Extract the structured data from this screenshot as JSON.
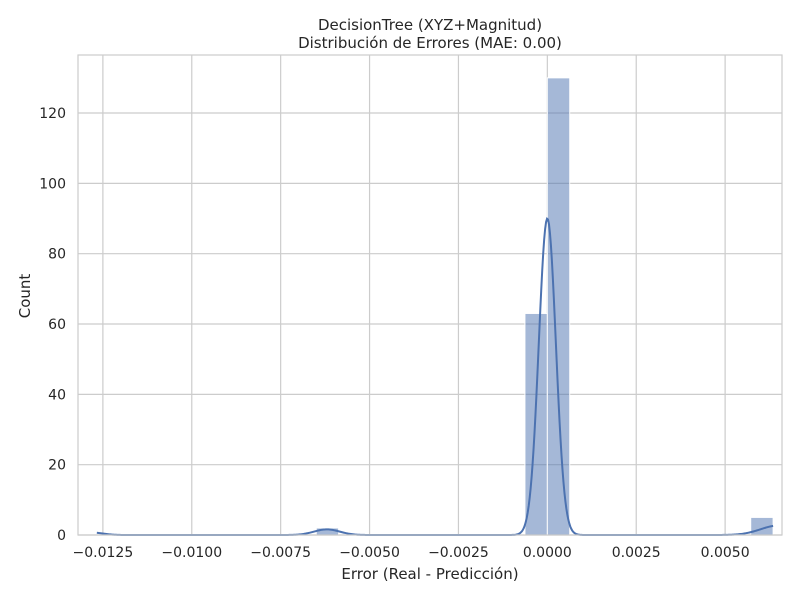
{
  "chart_data": {
    "type": "histogram",
    "title_line1": "DecisionTree (XYZ+Magnitud)",
    "title_line2": "Distribución de Errores (MAE: 0.00)",
    "xlabel": "Error (Real - Predicción)",
    "ylabel": "Count",
    "xlim": [
      -0.0132,
      0.0066
    ],
    "ylim": [
      0,
      136.5
    ],
    "x_ticks": [
      -0.0125,
      -0.01,
      -0.0075,
      -0.005,
      -0.0025,
      0.0,
      0.0025,
      0.005
    ],
    "x_tick_labels": [
      "−0.0125",
      "−0.0100",
      "−0.0075",
      "−0.0050",
      "−0.0025",
      "0.0000",
      "0.0025",
      "0.0050"
    ],
    "y_ticks": [
      0,
      20,
      40,
      60,
      80,
      100,
      120
    ],
    "y_tick_labels": [
      "0",
      "20",
      "40",
      "60",
      "80",
      "100",
      "120"
    ],
    "grid": true,
    "bar_color": "#4c72b0",
    "kde_color": "#4c72b0",
    "bins": [
      {
        "x0": -0.01267,
        "x1": -0.01204,
        "count": 0
      },
      {
        "x0": -0.0065,
        "x1": -0.00587,
        "count": 2
      },
      {
        "x0": -0.00063,
        "x1": 0.0,
        "count": 63
      },
      {
        "x0": 0.0,
        "x1": 0.00063,
        "count": 130
      },
      {
        "x0": 0.00572,
        "x1": 0.00635,
        "count": 5
      }
    ],
    "kde": {
      "components": [
        {
          "mean": 0.0,
          "sd": 0.00024,
          "peak": 90
        },
        {
          "mean": -0.0062,
          "sd": 0.00036,
          "peak": 1.6
        },
        {
          "mean": 0.0065,
          "sd": 0.0005,
          "peak": 2.7
        },
        {
          "mean": -0.0128,
          "sd": 0.0003,
          "peak": 0.7
        }
      ],
      "x_start": -0.01267,
      "x_end": 0.00635
    }
  }
}
